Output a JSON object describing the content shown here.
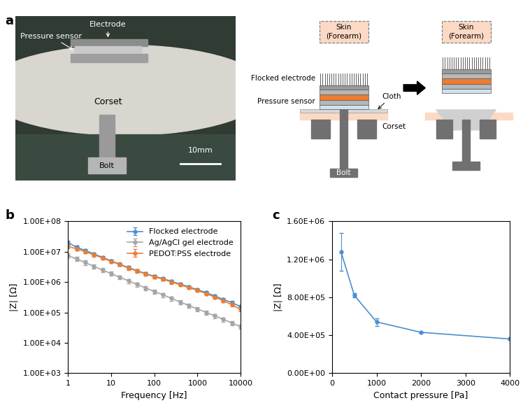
{
  "panel_labels": [
    "a",
    "b",
    "c"
  ],
  "photo": {
    "labels": [
      "Electrode",
      "Pressure sensor",
      "Corset",
      "Bolt"
    ],
    "scale_bar": "10mm"
  },
  "schematic": {
    "skin": "Skin\n(Forearm)",
    "labels": [
      "Flocked electrode",
      "Pressure sensor",
      "Cloth",
      "Corset",
      "Bolt"
    ]
  },
  "chart_data": [
    {
      "type": "line",
      "log": true,
      "x_label": "Frequency [Hz]",
      "y_label": "|Z| [Ω]",
      "x": [
        1,
        1.585,
        2.512,
        3.981,
        6.31,
        10,
        15.85,
        25.12,
        39.81,
        63.1,
        100,
        158.5,
        251.2,
        398.1,
        631,
        1000,
        1585,
        2512,
        3981,
        6310,
        10000
      ],
      "xlim": [
        1,
        10000
      ],
      "xticks": [
        1,
        10,
        100,
        1000,
        10000
      ],
      "ylim": [
        1000,
        100000000
      ],
      "yticks": [
        {
          "value": 1000,
          "label": "1.00E+03"
        },
        {
          "value": 10000,
          "label": "1.00E+04"
        },
        {
          "value": 100000,
          "label": "1.00E+05"
        },
        {
          "value": 1000000,
          "label": "1.00E+06"
        },
        {
          "value": 10000000,
          "label": "1.00E+07"
        },
        {
          "value": 100000000,
          "label": "1.00E+08"
        }
      ],
      "legend": "upper right",
      "series": [
        {
          "name": "Flocked electrode",
          "color": "#4a8fd0",
          "marker": "circle",
          "line_style": "solid",
          "values": [
            20000000.0,
            14000000.0,
            11000000.0,
            8500000.0,
            6500000.0,
            5000000.0,
            3900000.0,
            3000000.0,
            2400000.0,
            1900000.0,
            1550000.0,
            1300000.0,
            1050000.0,
            860000.0,
            700000.0,
            560000.0,
            450000.0,
            350000.0,
            270000.0,
            210000.0,
            155000.0
          ],
          "errors": [
            3500000.0,
            2000000.0,
            1500000.0,
            1100000.0,
            800000.0,
            600000.0,
            450000.0,
            350000.0,
            280000.0,
            220000.0,
            180000.0,
            150000.0,
            120000.0,
            100000.0,
            80000.0,
            65000.0,
            50000.0,
            40000.0,
            30000.0,
            25000.0,
            20000.0
          ]
        },
        {
          "name": "Ag/AgCl gel electrode",
          "color": "#a5a5a5",
          "marker": "circle",
          "line_style": "solid",
          "values": [
            7500000.0,
            5800000.0,
            4400000.0,
            3300000.0,
            2500000.0,
            1900000.0,
            1450000.0,
            1100000.0,
            840000.0,
            640000.0,
            490000.0,
            380000.0,
            290000.0,
            220000.0,
            170000.0,
            130000.0,
            100000.0,
            77000.0,
            59000.0,
            45000.0,
            34000.0
          ],
          "errors": [
            1200000.0,
            900000.0,
            700000.0,
            500000.0,
            380000.0,
            290000.0,
            220000.0,
            170000.0,
            130000.0,
            100000.0,
            75000.0,
            58000.0,
            45000.0,
            34000.0,
            26000.0,
            20000.0,
            15000.0,
            12000.0,
            9000.0,
            7000.0,
            5000.0
          ]
        },
        {
          "name": "PEDOT:PSS electrode",
          "color": "#ed7d31",
          "marker": "circle",
          "line_style": "solid",
          "values": [
            15000000.0,
            12500000.0,
            10000000.0,
            8000000.0,
            6200000.0,
            4800000.0,
            3800000.0,
            2900000.0,
            2300000.0,
            1850000.0,
            1500000.0,
            1250000.0,
            1000000.0,
            820000.0,
            660000.0,
            530000.0,
            420000.0,
            320000.0,
            240000.0,
            180000.0,
            125000.0
          ],
          "errors": [
            2000000.0,
            1600000.0,
            1300000.0,
            1000000.0,
            750000.0,
            580000.0,
            450000.0,
            350000.0,
            270000.0,
            220000.0,
            180000.0,
            150000.0,
            120000.0,
            95000.0,
            75000.0,
            60000.0,
            48000.0,
            37000.0,
            28000.0,
            21000.0,
            15000.0
          ]
        }
      ]
    },
    {
      "type": "line",
      "x_label": "Contact pressure [Pa]",
      "y_label": "|Z| [Ω]",
      "x": [
        200,
        500,
        1000,
        2000,
        4000
      ],
      "xlim": [
        0,
        4000
      ],
      "xticks": [
        0,
        1000,
        2000,
        3000,
        4000
      ],
      "ylim": [
        0,
        1600000
      ],
      "yticks": [
        {
          "value": 0,
          "label": "0.00E+00"
        },
        {
          "value": 400000,
          "label": "4.00E+05"
        },
        {
          "value": 800000,
          "label": "8.00E+05"
        },
        {
          "value": 1200000,
          "label": "1.20E+06"
        },
        {
          "value": 1600000,
          "label": "1.60E+06"
        }
      ],
      "series": [
        {
          "color": "#4a8fd0",
          "marker": "circle",
          "line_style": "solid",
          "values": [
            1280000,
            820000,
            540000,
            430000,
            360000
          ],
          "errors": [
            200000,
            20000,
            40000,
            8000,
            8000
          ]
        }
      ]
    }
  ]
}
